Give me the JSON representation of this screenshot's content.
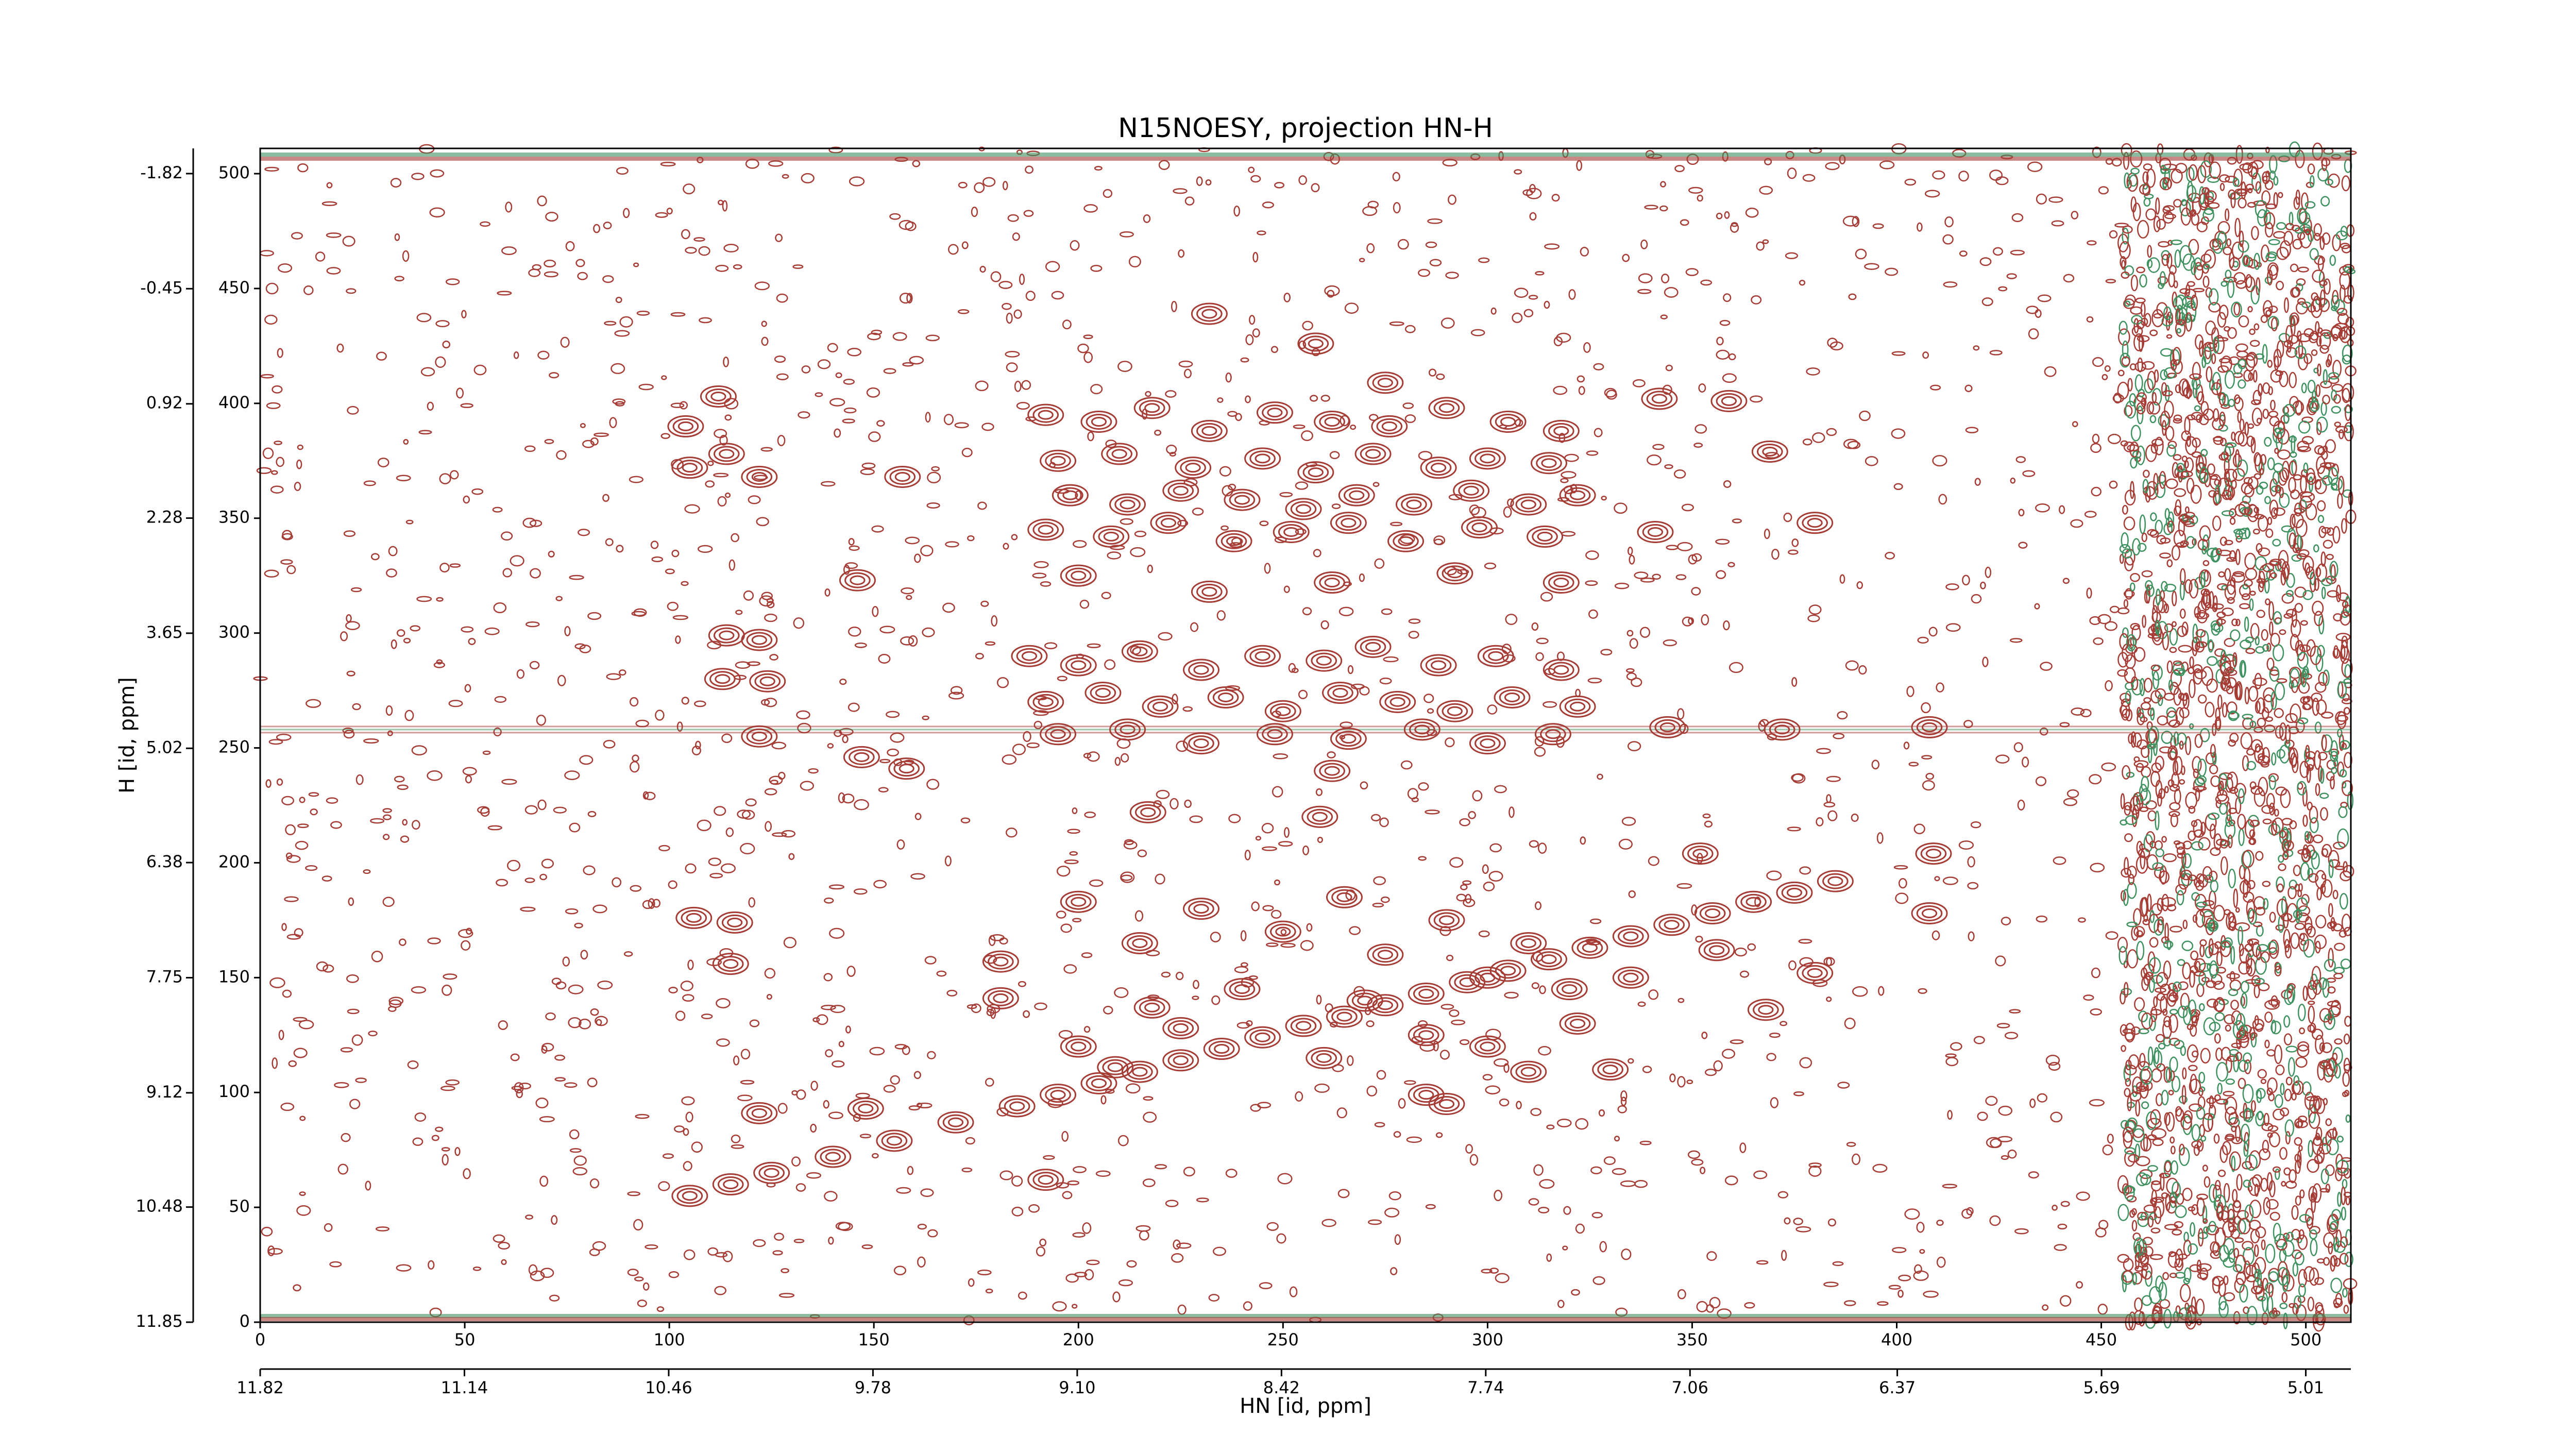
{
  "chart_data": {
    "type": "contour",
    "title": "N15NOESY, projection HN-H",
    "xlabel": "HN [id, ppm]",
    "ylabel": "H [id, ppm]",
    "color": "#a53c35",
    "negative_color": "#3f9160",
    "xlim": [
      0,
      511
    ],
    "ylim": [
      0,
      511
    ],
    "xticks": [
      0,
      50,
      100,
      150,
      200,
      250,
      300,
      350,
      400,
      450,
      500
    ],
    "yticks": [
      0,
      50,
      100,
      150,
      200,
      250,
      300,
      350,
      400,
      450,
      500
    ],
    "x2lim": [
      11.82,
      4.86
    ],
    "y2lim": [
      11.85,
      -2.12
    ],
    "x2ticks": [
      11.82,
      11.14,
      10.46,
      9.78,
      {
        "value": 9.1,
        "label": "9.10"
      },
      8.42,
      7.74,
      7.06,
      6.37,
      5.69,
      5.01
    ],
    "y2ticks": [
      11.85,
      10.48,
      9.12,
      7.75,
      6.38,
      5.02,
      3.65,
      2.28,
      0.92,
      -0.45,
      -1.82
    ],
    "x": [
      105,
      115,
      125,
      140,
      155,
      170,
      185,
      195,
      205,
      215,
      225,
      235,
      245,
      255,
      265,
      275,
      285,
      295,
      305,
      315,
      325,
      335,
      345,
      355,
      365,
      375,
      385,
      112,
      104,
      114,
      122,
      105,
      114,
      122,
      113,
      124,
      122,
      106,
      116,
      115,
      147,
      158,
      146,
      157,
      232,
      258,
      275,
      342,
      359,
      369,
      341,
      380,
      409,
      408,
      352,
      356,
      368,
      380,
      322,
      310,
      285,
      192,
      148,
      122,
      200,
      181,
      181,
      218,
      209,
      259,
      217,
      262,
      408,
      372,
      344,
      192,
      205,
      218,
      232,
      248,
      262,
      276,
      290,
      305,
      318,
      195,
      210,
      228,
      245,
      258,
      272,
      288,
      300,
      315,
      198,
      212,
      225,
      240,
      255,
      268,
      282,
      296,
      310,
      322,
      192,
      208,
      222,
      238,
      252,
      266,
      280,
      298,
      314,
      200,
      232,
      262,
      292,
      318,
      188,
      200,
      215,
      230,
      245,
      260,
      272,
      288,
      302,
      318,
      192,
      206,
      220,
      236,
      250,
      264,
      278,
      292,
      306,
      322,
      195,
      212,
      230,
      248,
      266,
      284,
      300,
      316,
      230,
      250,
      265,
      275,
      290,
      300,
      310,
      285,
      270,
      240,
      225,
      260,
      300,
      320,
      335,
      330,
      290,
      200,
      215
    ],
    "y": [
      55,
      60,
      65,
      72,
      79,
      87,
      94,
      99,
      104,
      109,
      114,
      119,
      124,
      129,
      133,
      138,
      143,
      148,
      153,
      158,
      163,
      168,
      173,
      178,
      183,
      187,
      192,
      403,
      390,
      378,
      368,
      372,
      299,
      297,
      280,
      279,
      255,
      176,
      174,
      156,
      246,
      241,
      323,
      368,
      439,
      426,
      409,
      402,
      401,
      379,
      344,
      348,
      204,
      178,
      204,
      162,
      136,
      152,
      130,
      109,
      99,
      62,
      93,
      91,
      183,
      157,
      141,
      137,
      111,
      220,
      222,
      240,
      259,
      258,
      259,
      395,
      392,
      398,
      388,
      396,
      392,
      390,
      398,
      392,
      388,
      375,
      378,
      372,
      376,
      370,
      378,
      372,
      376,
      374,
      360,
      356,
      362,
      358,
      354,
      360,
      356,
      362,
      356,
      360,
      345,
      342,
      348,
      340,
      344,
      348,
      340,
      346,
      342,
      325,
      318,
      322,
      326,
      322,
      290,
      286,
      292,
      284,
      290,
      288,
      294,
      286,
      290,
      284,
      270,
      274,
      268,
      272,
      266,
      274,
      270,
      266,
      272,
      268,
      256,
      258,
      252,
      256,
      254,
      258,
      252,
      256,
      180,
      170,
      185,
      160,
      175,
      150,
      165,
      125,
      140,
      145,
      128,
      115,
      120,
      145,
      150,
      110,
      95,
      120,
      165
    ]
  }
}
